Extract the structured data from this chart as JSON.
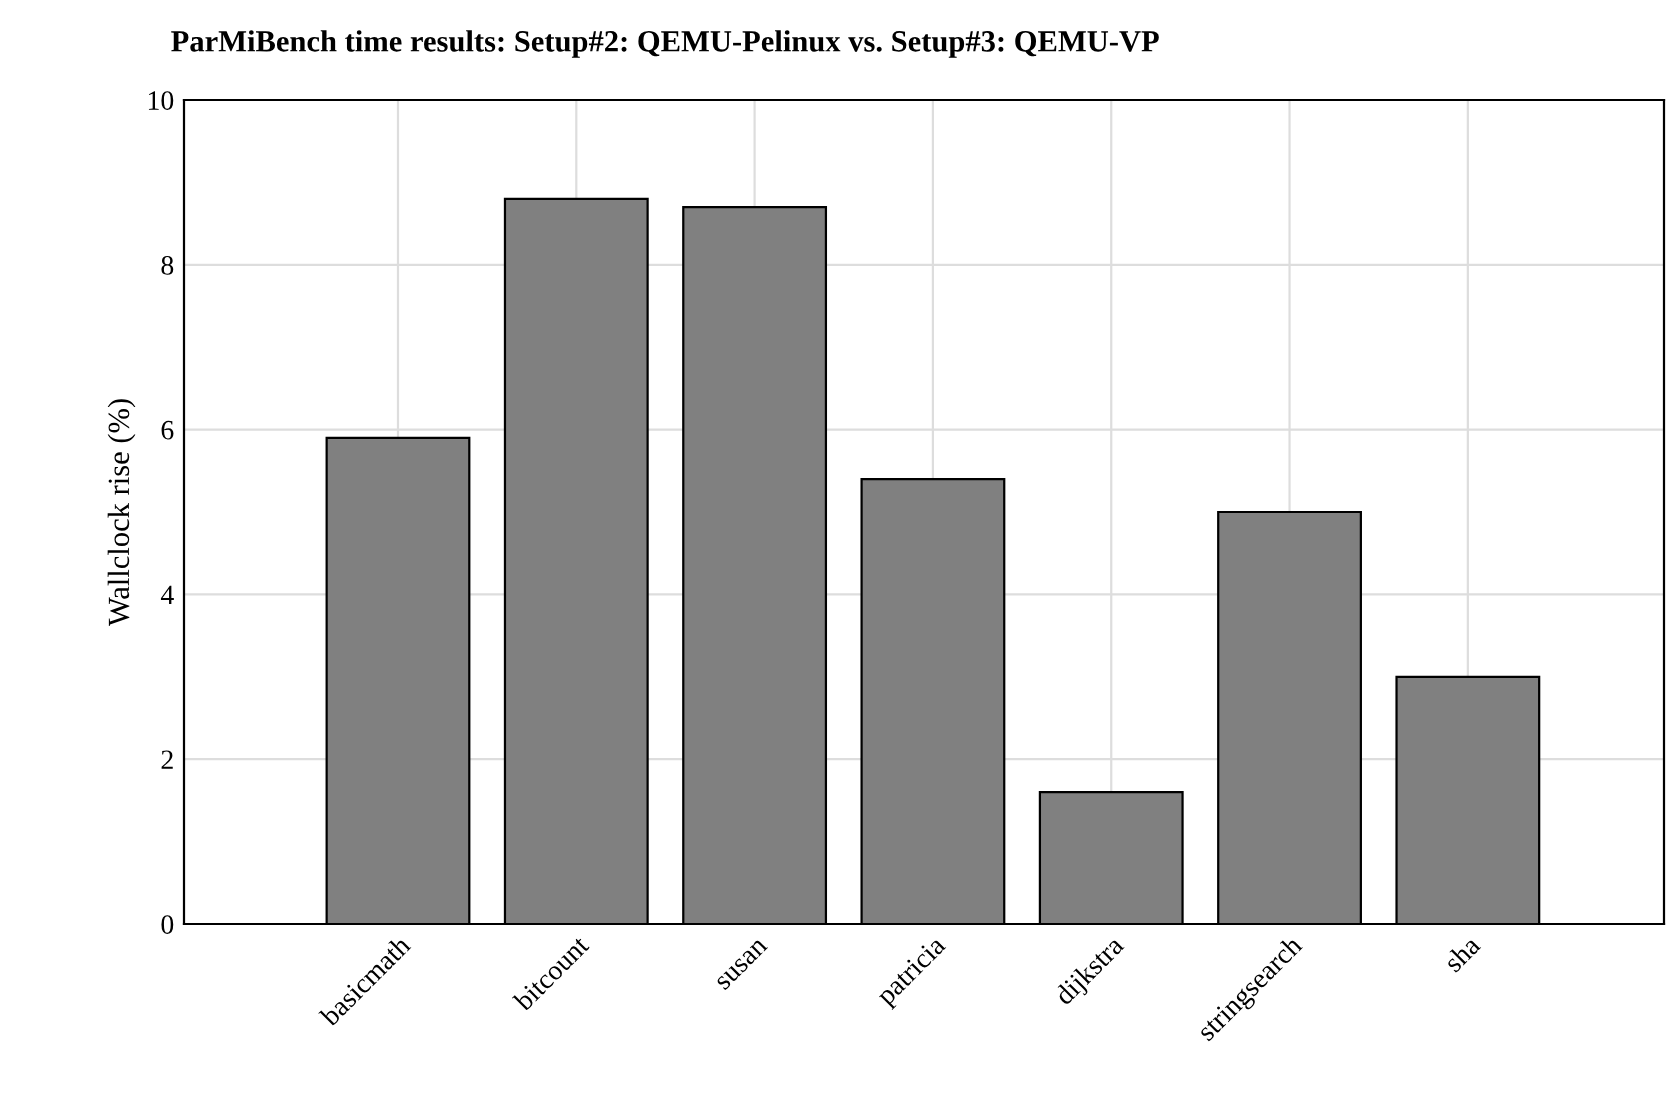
{
  "chart_data": {
    "type": "bar",
    "title": "ParMiBench time results: Setup#2: QEMU-Pelinux vs. Setup#3: QEMU-VP",
    "ylabel": "Wallclock rise (%)",
    "categories": [
      "basicmath",
      "bitcount",
      "susan",
      "patricia",
      "dijkstra",
      "stringsearch",
      "sha"
    ],
    "values": [
      5.9,
      8.8,
      8.7,
      5.4,
      1.6,
      5.0,
      3.0
    ],
    "color": "#808080",
    "ylim": [
      0,
      10
    ],
    "yticks": [
      0,
      2,
      4,
      6,
      8,
      10
    ],
    "grid": true
  }
}
